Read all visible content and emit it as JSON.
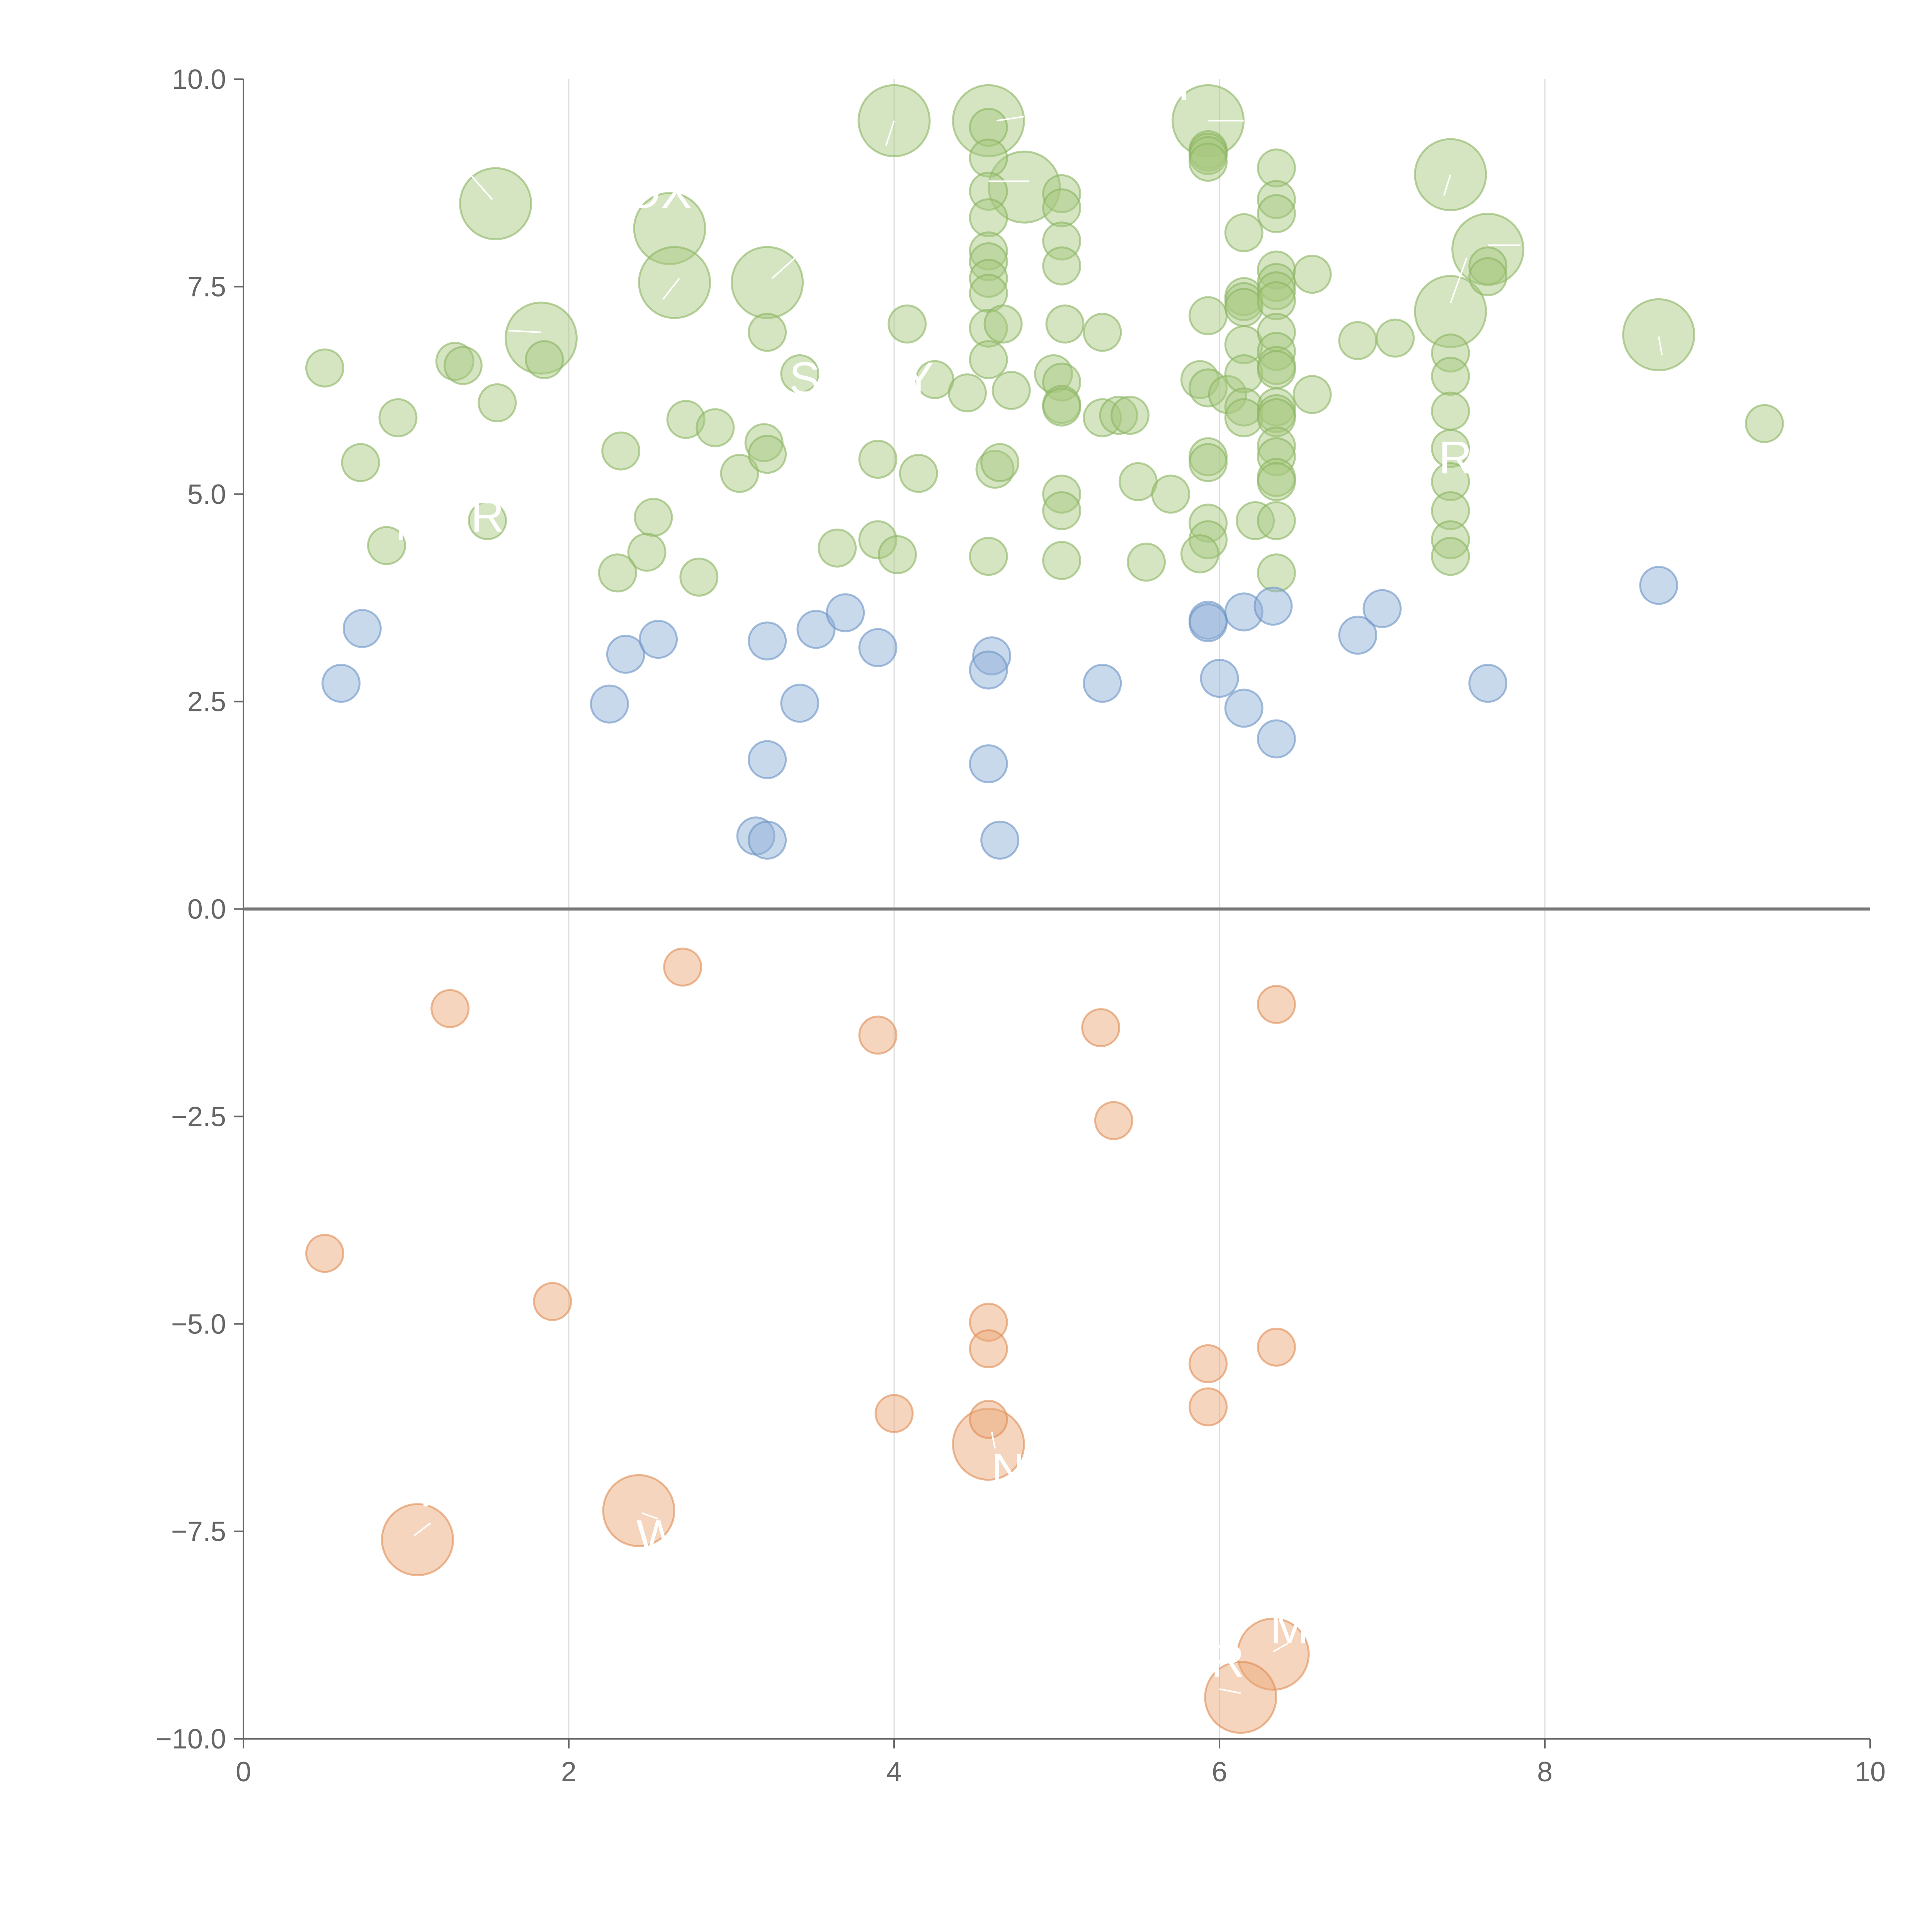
{
  "chart_data": {
    "type": "scatter",
    "title": "",
    "xlabel": "",
    "ylabel": "",
    "xlim": [
      0,
      10
    ],
    "ylim": [
      -10,
      10
    ],
    "xticks": [
      "0",
      "2",
      "4",
      "6",
      "8",
      "10"
    ],
    "yticks": [
      "10.0",
      "7.5",
      "5.0",
      "2.5",
      "0.0",
      "−2.5",
      "−5.0",
      "−7.5",
      "−10.0"
    ],
    "ytick_values": [
      10,
      7.5,
      5,
      2.5,
      0,
      -2.5,
      -5,
      -7.5,
      -10
    ],
    "grid": "vertical",
    "colors": {
      "green_fill": "#a8c880",
      "green_stroke": "#8ab460",
      "blue_fill": "#8fb0d8",
      "blue_stroke": "#6a92c4",
      "orange_fill": "#eaa878",
      "orange_stroke": "#df8c54"
    },
    "series": [
      {
        "name": "green",
        "color": "green",
        "points": [
          [
            1.55,
            8.5,
            "L"
          ],
          [
            2.62,
            8.2,
            "L"
          ],
          [
            2.65,
            7.55,
            "L"
          ],
          [
            3.22,
            7.55,
            "L"
          ],
          [
            1.83,
            6.88,
            "L"
          ],
          [
            4.0,
            9.5,
            "L"
          ],
          [
            4.58,
            9.5,
            "L"
          ],
          [
            4.8,
            8.7,
            "L"
          ],
          [
            5.93,
            9.5,
            "L"
          ],
          [
            7.42,
            8.85,
            "L"
          ],
          [
            7.65,
            7.95,
            "L"
          ],
          [
            7.42,
            7.2,
            "L"
          ],
          [
            8.7,
            6.92,
            "L"
          ],
          [
            0.5,
            6.52
          ],
          [
            0.72,
            5.38
          ],
          [
            0.95,
            5.92
          ],
          [
            1.3,
            6.6
          ],
          [
            1.35,
            6.55
          ],
          [
            1.56,
            6.1
          ],
          [
            1.85,
            6.62
          ],
          [
            0.88,
            4.38
          ],
          [
            1.5,
            4.68
          ],
          [
            2.32,
            5.52
          ],
          [
            2.52,
            4.72
          ],
          [
            2.48,
            4.3
          ],
          [
            2.3,
            4.05
          ],
          [
            2.72,
            5.9
          ],
          [
            2.9,
            5.8
          ],
          [
            2.8,
            4.0
          ],
          [
            3.05,
            5.25
          ],
          [
            3.22,
            6.95
          ],
          [
            3.42,
            6.45
          ],
          [
            3.2,
            5.62
          ],
          [
            3.22,
            5.48
          ],
          [
            3.65,
            4.35
          ],
          [
            3.9,
            5.42
          ],
          [
            3.9,
            4.45
          ],
          [
            4.08,
            7.05
          ],
          [
            4.15,
            5.25
          ],
          [
            4.02,
            4.27
          ],
          [
            4.25,
            6.38
          ],
          [
            4.45,
            6.22
          ],
          [
            4.72,
            6.25
          ],
          [
            4.58,
            9.42
          ],
          [
            4.58,
            9.05
          ],
          [
            4.58,
            8.65
          ],
          [
            4.58,
            8.33
          ],
          [
            4.58,
            7.93
          ],
          [
            4.58,
            7.8
          ],
          [
            4.58,
            7.6
          ],
          [
            4.58,
            7.42
          ],
          [
            4.58,
            7.0
          ],
          [
            4.58,
            6.62
          ],
          [
            4.58,
            4.25
          ],
          [
            4.62,
            5.3
          ],
          [
            4.65,
            5.38
          ],
          [
            4.67,
            7.05
          ],
          [
            5.03,
            8.62
          ],
          [
            5.03,
            8.45
          ],
          [
            5.03,
            8.05
          ],
          [
            5.03,
            7.75
          ],
          [
            5.05,
            7.05
          ],
          [
            4.98,
            6.45
          ],
          [
            5.03,
            6.35
          ],
          [
            5.03,
            6.08
          ],
          [
            5.03,
            6.05
          ],
          [
            5.03,
            5.0
          ],
          [
            5.03,
            4.8
          ],
          [
            5.03,
            4.2
          ],
          [
            5.28,
            6.95
          ],
          [
            5.28,
            5.92
          ],
          [
            5.38,
            5.95
          ],
          [
            5.45,
            5.95
          ],
          [
            5.5,
            5.15
          ],
          [
            5.7,
            5.0
          ],
          [
            5.55,
            4.18
          ],
          [
            5.93,
            9.15
          ],
          [
            5.93,
            9.12
          ],
          [
            5.93,
            9.08
          ],
          [
            5.93,
            9.0
          ],
          [
            5.93,
            7.15
          ],
          [
            5.88,
            6.38
          ],
          [
            5.93,
            6.28
          ],
          [
            6.05,
            6.2
          ],
          [
            5.93,
            5.45
          ],
          [
            5.93,
            5.38
          ],
          [
            5.93,
            4.65
          ],
          [
            5.93,
            4.45
          ],
          [
            5.88,
            4.28
          ],
          [
            6.15,
            8.15
          ],
          [
            6.15,
            7.38
          ],
          [
            6.15,
            7.32
          ],
          [
            6.15,
            7.25
          ],
          [
            6.15,
            6.8
          ],
          [
            6.15,
            6.45
          ],
          [
            6.15,
            6.05
          ],
          [
            6.15,
            5.92
          ],
          [
            6.22,
            4.68
          ],
          [
            6.35,
            8.93
          ],
          [
            6.35,
            8.55
          ],
          [
            6.35,
            8.38
          ],
          [
            6.35,
            7.7
          ],
          [
            6.35,
            7.55
          ],
          [
            6.35,
            7.45
          ],
          [
            6.35,
            7.33
          ],
          [
            6.35,
            6.95
          ],
          [
            6.35,
            6.72
          ],
          [
            6.35,
            6.55
          ],
          [
            6.35,
            6.5
          ],
          [
            6.35,
            6.05
          ],
          [
            6.35,
            5.97
          ],
          [
            6.35,
            5.92
          ],
          [
            6.35,
            5.58
          ],
          [
            6.35,
            5.45
          ],
          [
            6.35,
            5.2
          ],
          [
            6.35,
            5.15
          ],
          [
            6.35,
            4.68
          ],
          [
            6.35,
            4.05
          ],
          [
            6.57,
            7.65
          ],
          [
            6.57,
            6.2
          ],
          [
            6.85,
            6.85
          ],
          [
            7.08,
            6.88
          ],
          [
            7.42,
            6.7
          ],
          [
            7.42,
            6.42
          ],
          [
            7.42,
            6.0
          ],
          [
            7.42,
            5.55
          ],
          [
            7.42,
            5.15
          ],
          [
            7.42,
            4.8
          ],
          [
            7.42,
            4.45
          ],
          [
            7.42,
            4.25
          ],
          [
            7.65,
            7.75
          ],
          [
            7.65,
            7.62
          ],
          [
            9.35,
            5.85
          ]
        ]
      },
      {
        "name": "blue",
        "color": "blue",
        "points": [
          [
            0.6,
            2.72
          ],
          [
            0.73,
            3.38
          ],
          [
            2.25,
            2.47
          ],
          [
            2.35,
            3.07
          ],
          [
            2.55,
            3.25
          ],
          [
            3.22,
            3.23
          ],
          [
            3.22,
            1.8
          ],
          [
            3.42,
            2.48
          ],
          [
            3.52,
            3.37
          ],
          [
            3.7,
            3.57
          ],
          [
            3.9,
            3.15
          ],
          [
            3.15,
            0.88
          ],
          [
            3.22,
            0.83
          ],
          [
            4.6,
            3.05
          ],
          [
            4.58,
            2.88
          ],
          [
            4.58,
            1.75
          ],
          [
            4.65,
            0.83
          ],
          [
            5.28,
            2.72
          ],
          [
            5.93,
            3.48
          ],
          [
            5.93,
            3.45
          ],
          [
            6.0,
            2.78
          ],
          [
            6.15,
            3.58
          ],
          [
            6.15,
            2.42
          ],
          [
            6.33,
            3.65
          ],
          [
            6.35,
            2.05
          ],
          [
            6.85,
            3.3
          ],
          [
            7.0,
            3.62
          ],
          [
            7.65,
            2.72
          ],
          [
            8.7,
            3.9
          ]
        ]
      },
      {
        "name": "orange",
        "color": "orange",
        "points": [
          [
            1.07,
            -7.6,
            "L"
          ],
          [
            2.43,
            -7.25,
            "L"
          ],
          [
            4.58,
            -6.45,
            "L"
          ],
          [
            6.33,
            -8.98,
            "L"
          ],
          [
            6.13,
            -9.5,
            "L"
          ],
          [
            0.5,
            -4.15
          ],
          [
            1.27,
            -1.2
          ],
          [
            1.9,
            -4.73
          ],
          [
            2.7,
            -0.7
          ],
          [
            3.9,
            -1.52
          ],
          [
            4.0,
            -6.08
          ],
          [
            4.58,
            -4.98
          ],
          [
            4.58,
            -5.3
          ],
          [
            4.58,
            -6.15
          ],
          [
            5.27,
            -1.43
          ],
          [
            5.35,
            -2.55
          ],
          [
            5.93,
            -5.48
          ],
          [
            5.93,
            -6.0
          ],
          [
            6.35,
            -1.15
          ],
          [
            6.35,
            -5.28
          ]
        ]
      }
    ],
    "labels": [
      {
        "text": "OX",
        "x": 2.55,
        "y": 8.45
      },
      {
        "text": "Y",
        "x": 5.78,
        "y": 9.75
      },
      {
        "text": "R",
        "x": 7.45,
        "y": 5.25
      },
      {
        "text": "R",
        "x": 1.5,
        "y": 4.55
      },
      {
        "text": "M",
        "x": 1.05,
        "y": 4.45
      },
      {
        "text": "S",
        "x": 3.45,
        "y": 6.2
      },
      {
        "text": "Y",
        "x": 4.15,
        "y": 6.2
      },
      {
        "text": "I",
        "x": 1.12,
        "y": -7.2
      },
      {
        "text": "W",
        "x": 2.55,
        "y": -7.75
      },
      {
        "text": "N",
        "x": 4.7,
        "y": -6.95
      },
      {
        "text": "M",
        "x": 6.43,
        "y": -8.85
      },
      {
        "text": "R",
        "x": 6.05,
        "y": -9.25
      }
    ],
    "leaders": [
      [
        1.35,
        8.95,
        1.53,
        8.55
      ],
      [
        2.58,
        7.35,
        2.68,
        7.6
      ],
      [
        3.25,
        7.6,
        3.42,
        7.9
      ],
      [
        1.63,
        6.97,
        1.83,
        6.95
      ],
      [
        3.95,
        9.2,
        4.0,
        9.5
      ],
      [
        4.63,
        9.5,
        4.8,
        9.55
      ],
      [
        4.58,
        8.77,
        4.83,
        8.77
      ],
      [
        5.93,
        9.5,
        6.15,
        9.5
      ],
      [
        7.42,
        8.85,
        7.38,
        8.6
      ],
      [
        7.42,
        7.3,
        7.52,
        7.85
      ],
      [
        7.65,
        8.0,
        7.85,
        8.0
      ],
      [
        8.72,
        6.68,
        8.7,
        6.9
      ],
      [
        1.05,
        -7.55,
        1.15,
        -7.4
      ],
      [
        2.45,
        -7.28,
        2.55,
        -7.35
      ],
      [
        4.6,
        -6.3,
        4.62,
        -6.5
      ],
      [
        6.13,
        -9.45,
        6.0,
        -9.4
      ],
      [
        6.33,
        -8.95,
        6.42,
        -8.85
      ]
    ]
  }
}
